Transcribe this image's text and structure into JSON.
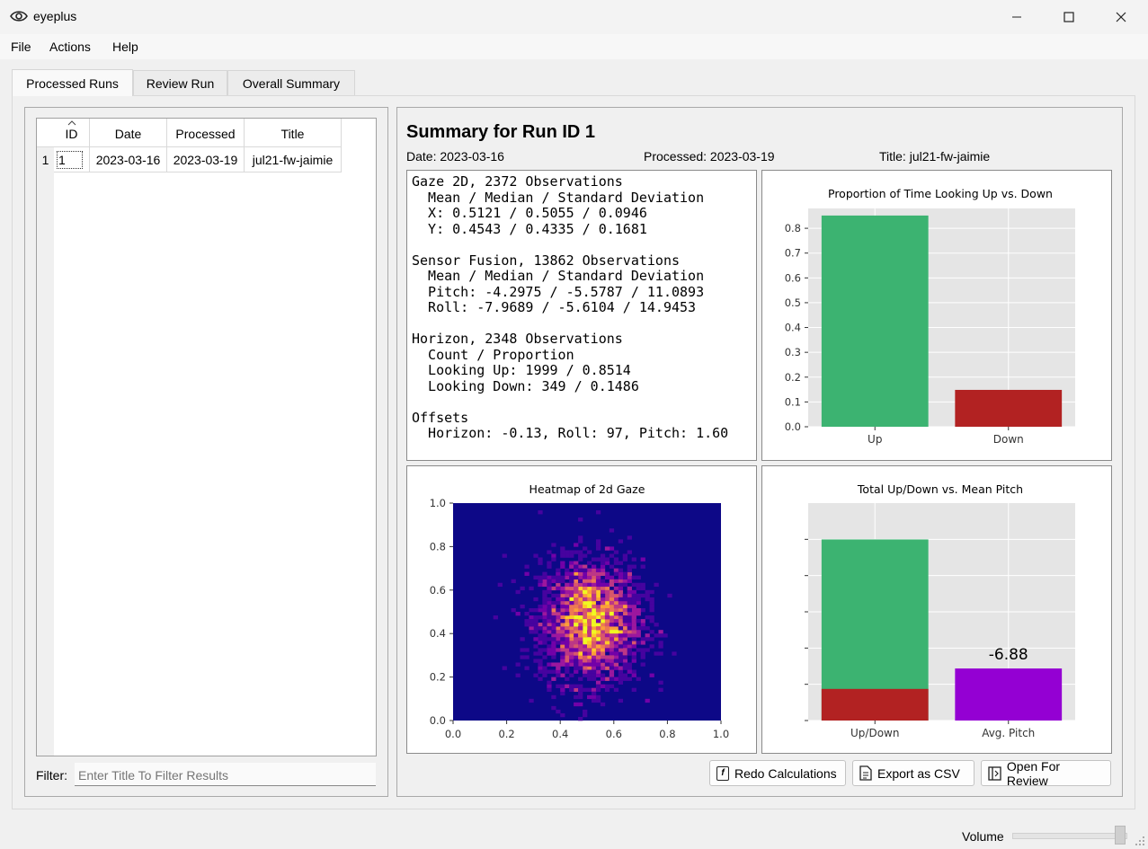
{
  "window": {
    "title": "eyeplus"
  },
  "menu": [
    "File",
    "Actions",
    "Help"
  ],
  "tabs": [
    "Processed Runs",
    "Review Run",
    "Overall Summary"
  ],
  "runs_table": {
    "headers": [
      "ID",
      "Date",
      "Processed",
      "Title"
    ],
    "rows": [
      {
        "row_number": "1",
        "id": "1",
        "date": "2023-03-16",
        "processed": "2023-03-19",
        "title": "jul21-fw-jaimie"
      }
    ]
  },
  "filter": {
    "label": "Filter:",
    "placeholder": "Enter Title To Filter Results"
  },
  "summary": {
    "title": "Summary for Run ID 1",
    "date": "Date: 2023-03-16",
    "processed": "Processed: 2023-03-19",
    "run_title": "Title: jul21-fw-jaimie",
    "stats_lines": [
      "Gaze 2D, 2372 Observations",
      "  Mean / Median / Standard Deviation",
      "  X: 0.5121 / 0.5055 / 0.0946",
      "  Y: 0.4543 / 0.4335 / 0.1681",
      "",
      "Sensor Fusion, 13862 Observations",
      "  Mean / Median / Standard Deviation",
      "  Pitch: -4.2975 / -5.5787 / 11.0893",
      "  Roll: -7.9689 / -5.6104 / 14.9453",
      "",
      "Horizon, 2348 Observations",
      "  Count / Proportion",
      "  Looking Up: 1999 / 0.8514",
      "  Looking Down: 349 / 0.1486",
      "",
      "Offsets",
      "  Horizon: -0.13, Roll: 97, Pitch: 1.60"
    ]
  },
  "buttons": {
    "redo": "Redo Calculations",
    "export": "Export as CSV",
    "open": "Open For Review"
  },
  "status": {
    "volume_label": "Volume",
    "volume_level": 1.0
  },
  "colors": {
    "up": "#3cb371",
    "down": "#b22222",
    "pitch": "#9400d3",
    "plot_bg": "#e5e5e5",
    "heat_bg": "#0d0887"
  },
  "chart_data": [
    {
      "type": "bar",
      "title": "Proportion of Time Looking Up vs. Down",
      "categories": [
        "Up",
        "Down"
      ],
      "values": [
        0.8514,
        0.1486
      ],
      "ylim": [
        0,
        0.88
      ],
      "yticks": [
        "0.0",
        "0.1",
        "0.2",
        "0.3",
        "0.4",
        "0.5",
        "0.6",
        "0.7",
        "0.8"
      ],
      "grid": true
    },
    {
      "type": "heatmap",
      "title": "Heatmap of 2d Gaze",
      "xlim": [
        0.0,
        1.0
      ],
      "ylim": [
        0.0,
        1.0
      ],
      "xticks": [
        "0.0",
        "0.2",
        "0.4",
        "0.6",
        "0.8",
        "1.0"
      ],
      "yticks": [
        "0.0",
        "0.2",
        "0.4",
        "0.6",
        "0.8",
        "1.0"
      ],
      "center": [
        0.5121,
        0.4543
      ],
      "spread": [
        0.0946,
        0.1681
      ],
      "observations": 2372
    },
    {
      "type": "bar",
      "title": "Total Up/Down vs. Mean Pitch",
      "categories": [
        "Up/Down",
        "Avg. Pitch"
      ],
      "stacked_first": {
        "up": 1999,
        "down": 349
      },
      "pitch_value": -6.88,
      "pitch_label": "-6.88",
      "ylim": [
        0,
        2400
      ],
      "grid": true
    }
  ]
}
